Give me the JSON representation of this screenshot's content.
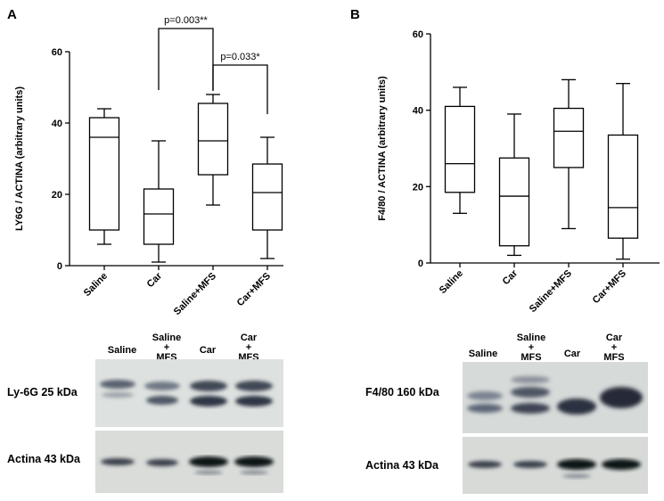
{
  "panels": {
    "a": "A",
    "b": "B"
  },
  "chart_data": [
    {
      "type": "box",
      "ylabel": "LY6G / ACTINA (arbitrary units)",
      "categories": [
        "Saline",
        "Car",
        "Saline+MFS",
        "Car+MFS"
      ],
      "ylim": [
        0,
        60
      ],
      "yticks": [
        0,
        20,
        40,
        60
      ],
      "boxes": [
        {
          "min": 6,
          "q1": 10,
          "median": 36,
          "q3": 41.5,
          "max": 44
        },
        {
          "min": 1,
          "q1": 6,
          "median": 14.5,
          "q3": 21.5,
          "max": 35
        },
        {
          "min": 17,
          "q1": 25.5,
          "median": 35,
          "q3": 45.5,
          "max": 48
        },
        {
          "min": 2,
          "q1": 10,
          "median": 20.5,
          "q3": 28.5,
          "max": 36
        }
      ],
      "annotations": [
        {
          "from": 1,
          "to": 2,
          "text": "p=0.003**"
        },
        {
          "from": 2,
          "to": 3,
          "text": "p=0.033*"
        }
      ]
    },
    {
      "type": "box",
      "ylabel": "F4/80 / ACTINA (arbitrary units)",
      "categories": [
        "Saline",
        "Car",
        "Saline+MFS",
        "Car+MFS"
      ],
      "ylim": [
        0,
        60
      ],
      "yticks": [
        0,
        20,
        40,
        60
      ],
      "boxes": [
        {
          "min": 13,
          "q1": 18.5,
          "median": 26,
          "q3": 41,
          "max": 46
        },
        {
          "min": 2,
          "q1": 4.5,
          "median": 17.5,
          "q3": 27.5,
          "max": 39
        },
        {
          "min": 9,
          "q1": 25,
          "median": 34.5,
          "q3": 40.5,
          "max": 48
        },
        {
          "min": 1,
          "q1": 6.5,
          "median": 14.5,
          "q3": 33.5,
          "max": 47
        }
      ],
      "annotations": []
    }
  ],
  "blots": {
    "left": {
      "lanes": [
        {
          "line1": "Saline",
          "line2": "",
          "line3": ""
        },
        {
          "line1": "Saline",
          "line2": "+",
          "line3": "MFS"
        },
        {
          "line1": "Car",
          "line2": "",
          "line3": ""
        },
        {
          "line1": "Car",
          "line2": "+",
          "line3": "MFS"
        }
      ],
      "rows": [
        "Ly-6G 25 kDa",
        "Actina 43 kDa"
      ]
    },
    "right": {
      "lanes": [
        {
          "line1": "Saline",
          "line2": "",
          "line3": ""
        },
        {
          "line1": "Saline",
          "line2": "+",
          "line3": "MFS"
        },
        {
          "line1": "Car",
          "line2": "",
          "line3": ""
        },
        {
          "line1": "Car",
          "line2": "+",
          "line3": "MFS"
        }
      ],
      "rows": [
        "F4/80 160 kDa",
        "Actina 43 kDa"
      ]
    }
  }
}
